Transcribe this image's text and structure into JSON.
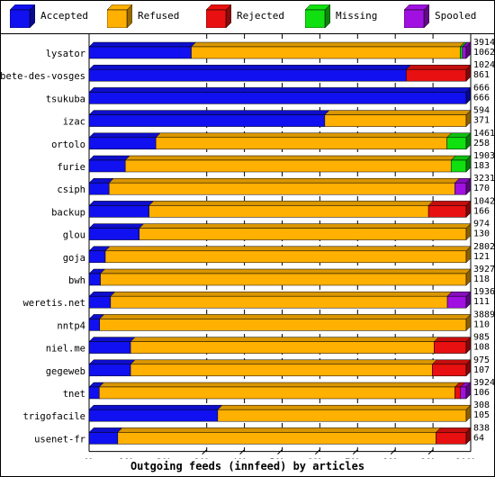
{
  "chart_data": {
    "type": "bar",
    "stacked": true,
    "orientation": "horizontal",
    "xlabel": "Outgoing feeds (innfeed) by articles",
    "xlim": [
      0,
      100
    ],
    "x_ticks": [
      "0%",
      "10%",
      "20%",
      "30%",
      "40%",
      "50%",
      "60%",
      "70%",
      "80%",
      "90%",
      "100%"
    ],
    "legend_position": "top",
    "series": [
      {
        "name": "Accepted",
        "color": "#1010f0"
      },
      {
        "name": "Refused",
        "color": "#ffb000"
      },
      {
        "name": "Rejected",
        "color": "#e81010"
      },
      {
        "name": "Missing",
        "color": "#10e010"
      },
      {
        "name": "Spooled",
        "color": "#a010e0"
      }
    ],
    "categories": [
      "lysator",
      "bete-des-vosges",
      "tsukuba",
      "izac",
      "ortolo",
      "furie",
      "csiph",
      "backup",
      "glou",
      "goja",
      "bwh",
      "weretis.net",
      "nntp4",
      "niel.me",
      "gegeweb",
      "tnet",
      "trigofacile",
      "usenet-fr"
    ],
    "totals_offered": [
      3914,
      1024,
      666,
      594,
      1461,
      1903,
      3231,
      1042,
      974,
      2802,
      3927,
      1936,
      3889,
      985,
      975,
      3924,
      308,
      838
    ],
    "totals_accepted": [
      1062,
      861,
      666,
      371,
      258,
      183,
      170,
      166,
      130,
      121,
      118,
      111,
      110,
      108,
      107,
      106,
      105,
      64
    ],
    "values_percent": [
      [
        27.1,
        71.3,
        0,
        0.6,
        1.0
      ],
      [
        84.1,
        0,
        15.9,
        0,
        0
      ],
      [
        100,
        0,
        0,
        0,
        0
      ],
      [
        62.5,
        37.5,
        0,
        0,
        0
      ],
      [
        17.7,
        77.2,
        0,
        5.1,
        0
      ],
      [
        9.6,
        86.4,
        0,
        4.0,
        0
      ],
      [
        5.3,
        91.7,
        0,
        0,
        3.0
      ],
      [
        15.9,
        74.1,
        10.0,
        0,
        0
      ],
      [
        13.3,
        86.7,
        0,
        0,
        0
      ],
      [
        4.3,
        95.7,
        0,
        0,
        0
      ],
      [
        3.0,
        97.0,
        0,
        0,
        0
      ],
      [
        5.7,
        89.3,
        0,
        0,
        5.0
      ],
      [
        2.8,
        97.2,
        0,
        0,
        0
      ],
      [
        11.0,
        80.5,
        8.5,
        0,
        0
      ],
      [
        11.0,
        80.0,
        9.0,
        0,
        0
      ],
      [
        2.7,
        94.3,
        1.5,
        0,
        1.5
      ],
      [
        34.1,
        65.9,
        0,
        0,
        0
      ],
      [
        7.6,
        84.4,
        8.0,
        0,
        0
      ]
    ]
  }
}
